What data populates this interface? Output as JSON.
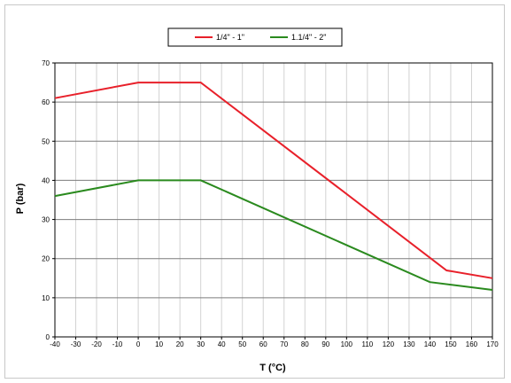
{
  "chart_data": {
    "type": "line",
    "xlabel": "T (°C)",
    "ylabel": "P (bar)",
    "xlim": [
      -40,
      170
    ],
    "ylim": [
      0,
      70
    ],
    "x_ticks": [
      -40,
      -30,
      -20,
      -10,
      0,
      10,
      20,
      30,
      40,
      50,
      60,
      70,
      80,
      90,
      100,
      110,
      120,
      130,
      140,
      150,
      160,
      170
    ],
    "y_ticks": [
      0,
      10,
      20,
      30,
      40,
      50,
      60,
      70
    ],
    "grid": true,
    "legend_position": "top-center",
    "series": [
      {
        "name": "1/4\" - 1\"",
        "color": "#e8202a",
        "points": [
          [
            -40,
            61
          ],
          [
            0,
            65
          ],
          [
            30,
            65
          ],
          [
            148,
            17
          ],
          [
            170,
            15
          ]
        ]
      },
      {
        "name": "1.1/4\" - 2\"",
        "color": "#2a8a1e",
        "points": [
          [
            -40,
            36
          ],
          [
            0,
            40
          ],
          [
            30,
            40
          ],
          [
            140,
            14
          ],
          [
            170,
            12
          ]
        ]
      }
    ]
  }
}
